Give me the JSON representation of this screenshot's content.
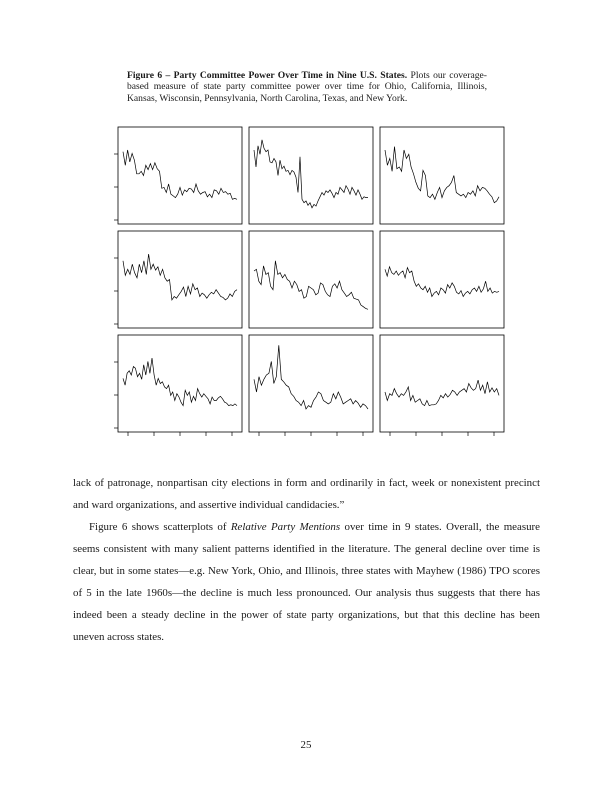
{
  "caption": {
    "label": "Figure 6 – Party Committee Power Over Time in Nine U.S. States.",
    "text": " Plots our coverage-based measure of state party committee power over time for Ohio, California, Illinois, Kansas, Wisconsin, Pennsylvania, North Carolina, Texas, and New York."
  },
  "chart_data": [
    {
      "type": "line",
      "values": [
        0.78,
        0.62,
        0.8,
        0.66,
        0.76,
        0.68,
        0.52,
        0.52,
        0.55,
        0.5,
        0.62,
        0.57,
        0.64,
        0.57,
        0.65,
        0.58,
        0.55,
        0.35,
        0.36,
        0.3,
        0.4,
        0.28,
        0.26,
        0.24,
        0.28,
        0.36,
        0.27,
        0.33,
        0.31,
        0.35,
        0.34,
        0.3,
        0.4,
        0.32,
        0.28,
        0.3,
        0.31,
        0.25,
        0.28,
        0.24,
        0.33,
        0.32,
        0.28,
        0.35,
        0.3,
        0.31,
        0.28,
        0.29,
        0.22,
        0.23,
        0.22
      ]
    },
    {
      "type": "line",
      "values": [
        0.8,
        0.6,
        0.85,
        0.75,
        0.92,
        0.82,
        0.78,
        0.8,
        0.66,
        0.65,
        0.7,
        0.66,
        0.5,
        0.68,
        0.58,
        0.61,
        0.55,
        0.56,
        0.51,
        0.56,
        0.54,
        0.48,
        0.3,
        0.72,
        0.22,
        0.18,
        0.2,
        0.15,
        0.18,
        0.12,
        0.16,
        0.14,
        0.2,
        0.25,
        0.3,
        0.27,
        0.32,
        0.3,
        0.33,
        0.29,
        0.24,
        0.3,
        0.28,
        0.36,
        0.33,
        0.3,
        0.38,
        0.34,
        0.28,
        0.36,
        0.32,
        0.27,
        0.33,
        0.28,
        0.22,
        0.25,
        0.24,
        0.24
      ]
    },
    {
      "type": "line",
      "values": [
        0.8,
        0.62,
        0.7,
        0.55,
        0.84,
        0.58,
        0.6,
        0.55,
        0.8,
        0.7,
        0.75,
        0.6,
        0.52,
        0.42,
        0.35,
        0.32,
        0.56,
        0.5,
        0.26,
        0.24,
        0.28,
        0.22,
        0.3,
        0.36,
        0.24,
        0.32,
        0.36,
        0.38,
        0.42,
        0.5,
        0.3,
        0.28,
        0.26,
        0.28,
        0.24,
        0.3,
        0.28,
        0.32,
        0.26,
        0.38,
        0.32,
        0.36,
        0.35,
        0.32,
        0.28,
        0.25,
        0.18,
        0.2,
        0.25
      ]
    },
    {
      "type": "line",
      "values": [
        0.72,
        0.55,
        0.62,
        0.56,
        0.68,
        0.58,
        0.52,
        0.68,
        0.58,
        0.72,
        0.56,
        0.8,
        0.62,
        0.68,
        0.61,
        0.65,
        0.55,
        0.62,
        0.52,
        0.48,
        0.5,
        0.26,
        0.3,
        0.28,
        0.32,
        0.36,
        0.41,
        0.3,
        0.42,
        0.33,
        0.45,
        0.38,
        0.4,
        0.3,
        0.34,
        0.32,
        0.28,
        0.32,
        0.35,
        0.33,
        0.38,
        0.34,
        0.3,
        0.29,
        0.26,
        0.28,
        0.33,
        0.3,
        0.36,
        0.38
      ]
    },
    {
      "type": "line",
      "values": [
        0.6,
        0.62,
        0.48,
        0.44,
        0.66,
        0.56,
        0.58,
        0.42,
        0.38,
        0.72,
        0.56,
        0.58,
        0.52,
        0.56,
        0.5,
        0.48,
        0.4,
        0.48,
        0.44,
        0.36,
        0.38,
        0.28,
        0.3,
        0.42,
        0.4,
        0.38,
        0.32,
        0.34,
        0.46,
        0.44,
        0.36,
        0.32,
        0.3,
        0.42,
        0.45,
        0.4,
        0.48,
        0.38,
        0.34,
        0.3,
        0.32,
        0.35,
        0.28,
        0.27,
        0.26,
        0.2,
        0.18,
        0.16,
        0.15
      ]
    },
    {
      "type": "line",
      "values": [
        0.62,
        0.54,
        0.65,
        0.58,
        0.56,
        0.6,
        0.55,
        0.58,
        0.6,
        0.52,
        0.64,
        0.58,
        0.6,
        0.48,
        0.42,
        0.45,
        0.4,
        0.38,
        0.42,
        0.35,
        0.4,
        0.3,
        0.34,
        0.36,
        0.32,
        0.4,
        0.38,
        0.34,
        0.44,
        0.4,
        0.46,
        0.42,
        0.35,
        0.33,
        0.37,
        0.3,
        0.34,
        0.36,
        0.33,
        0.38,
        0.4,
        0.36,
        0.42,
        0.35,
        0.39,
        0.48,
        0.36,
        0.4,
        0.34,
        0.36,
        0.35,
        0.36
      ]
    },
    {
      "type": "line",
      "values": [
        0.56,
        0.48,
        0.62,
        0.65,
        0.6,
        0.7,
        0.68,
        0.58,
        0.62,
        0.55,
        0.72,
        0.6,
        0.76,
        0.62,
        0.8,
        0.6,
        0.48,
        0.56,
        0.5,
        0.52,
        0.46,
        0.44,
        0.48,
        0.36,
        0.4,
        0.3,
        0.38,
        0.34,
        0.28,
        0.24,
        0.42,
        0.36,
        0.4,
        0.28,
        0.35,
        0.3,
        0.44,
        0.38,
        0.34,
        0.38,
        0.35,
        0.32,
        0.26,
        0.34,
        0.3,
        0.3,
        0.33,
        0.35,
        0.32,
        0.28,
        0.27,
        0.24,
        0.25,
        0.24,
        0.26,
        0.24
      ]
    },
    {
      "type": "line",
      "values": [
        0.55,
        0.4,
        0.58,
        0.48,
        0.55,
        0.6,
        0.62,
        0.76,
        0.5,
        0.58,
        0.95,
        0.55,
        0.52,
        0.48,
        0.46,
        0.38,
        0.35,
        0.3,
        0.28,
        0.24,
        0.3,
        0.2,
        0.24,
        0.22,
        0.3,
        0.34,
        0.4,
        0.38,
        0.3,
        0.28,
        0.26,
        0.28,
        0.38,
        0.32,
        0.4,
        0.34,
        0.26,
        0.28,
        0.3,
        0.32,
        0.26,
        0.3,
        0.27,
        0.22,
        0.26,
        0.24,
        0.2
      ]
    },
    {
      "type": "line",
      "values": [
        0.4,
        0.3,
        0.38,
        0.36,
        0.44,
        0.38,
        0.34,
        0.38,
        0.36,
        0.4,
        0.46,
        0.3,
        0.36,
        0.28,
        0.3,
        0.32,
        0.26,
        0.24,
        0.3,
        0.24,
        0.25,
        0.25,
        0.26,
        0.3,
        0.36,
        0.33,
        0.38,
        0.34,
        0.37,
        0.42,
        0.4,
        0.36,
        0.4,
        0.42,
        0.44,
        0.4,
        0.5,
        0.45,
        0.42,
        0.44,
        0.54,
        0.42,
        0.48,
        0.38,
        0.52,
        0.4,
        0.45,
        0.4,
        0.44,
        0.36
      ]
    }
  ],
  "body": {
    "p1": "lack of patronage, nonpartisan city elections in form and ordinarily in fact, week or nonexistent precinct and ward organizations, and assertive individual candidacies.”",
    "p2a": "Figure 6 shows scatterplots of ",
    "p2_em": "Relative Party Mentions",
    "p2b": " over time in 9 states.  Overall, the measure seems consistent with many salient patterns identified in the literature.  The general decline over time is clear, but in some states—e.g. New York, Ohio, and Illinois, three states with Mayhew (1986) TPO scores of 5 in the late 1960s—the decline is much less pronounced.  Our analysis thus suggests that there has indeed been a steady decline in the power of state party organizations, but that this decline has been uneven across states."
  },
  "page_number": "25"
}
